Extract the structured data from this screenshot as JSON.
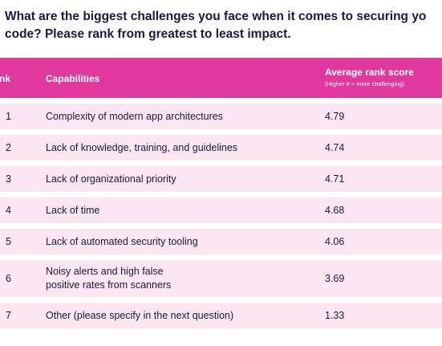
{
  "question": {
    "line1": "What are the biggest challenges you face when it comes to securing yo",
    "line2": "code? Please rank from greatest to least impact."
  },
  "table": {
    "headers": {
      "rank": "Rank",
      "capabilities": "Capabilities",
      "score": "Average rank score",
      "score_note": "(Higher # = more challenging)"
    },
    "rows": [
      {
        "rank": "1",
        "capability_line1": "Complexity of modern app architectures",
        "capability_line2": "",
        "score": "4.79"
      },
      {
        "rank": "2",
        "capability_line1": "Lack of knowledge, training, and guidelines",
        "capability_line2": "",
        "score": "4.74"
      },
      {
        "rank": "3",
        "capability_line1": "Lack of organizational priority",
        "capability_line2": "",
        "score": "4.71"
      },
      {
        "rank": "4",
        "capability_line1": "Lack of time",
        "capability_line2": "",
        "score": "4.68"
      },
      {
        "rank": "5",
        "capability_line1": "Lack of automated security tooling",
        "capability_line2": "",
        "score": "4.06"
      },
      {
        "rank": "6",
        "capability_line1": "Noisy alerts and high false",
        "capability_line2": "positive rates from scanners",
        "score": "3.69"
      },
      {
        "rank": "7",
        "capability_line1": "Other (please specify in the next question)",
        "capability_line2": "",
        "score": "1.33"
      }
    ]
  },
  "colors": {
    "header_bg": "#e0389c",
    "row_bg": "#fbe6f1",
    "text": "#1f1740"
  }
}
